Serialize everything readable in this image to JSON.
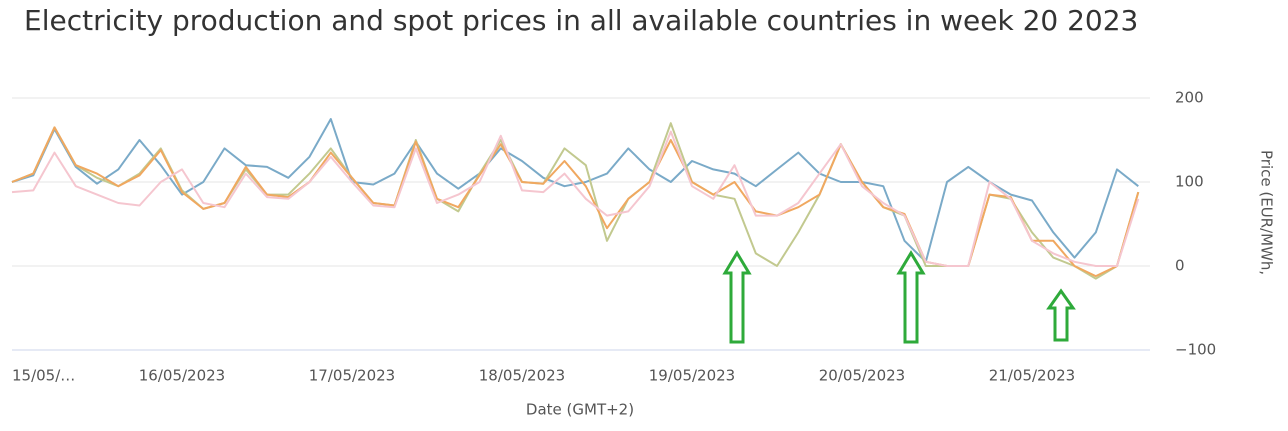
{
  "chart_data": {
    "type": "line",
    "title": "Electricity production and spot prices in all available countries in week 20 2023",
    "x_label": "Date (GMT+2)",
    "y_label": "Price (EUR/MWh,",
    "x": [
      0,
      3,
      6,
      9,
      12,
      15,
      18,
      21,
      24,
      27,
      30,
      33,
      36,
      39,
      42,
      45,
      48,
      51,
      54,
      57,
      60,
      63,
      66,
      69,
      72,
      75,
      78,
      81,
      84,
      87,
      90,
      93,
      96,
      99,
      102,
      105,
      108,
      111,
      114,
      117,
      120,
      123,
      126,
      129,
      132,
      135,
      138,
      141,
      144,
      147,
      150,
      153,
      156,
      159
    ],
    "xlim": [
      0,
      168
    ],
    "xticks": [
      {
        "value": 0,
        "label": "15/05/…"
      },
      {
        "value": 24,
        "label": "16/05/2023"
      },
      {
        "value": 48,
        "label": "17/05/2023"
      },
      {
        "value": 72,
        "label": "18/05/2023"
      },
      {
        "value": 96,
        "label": "19/05/2023"
      },
      {
        "value": 120,
        "label": "20/05/2023"
      },
      {
        "value": 144,
        "label": "21/05/2023"
      }
    ],
    "ylim": [
      -100,
      200
    ],
    "yticks": [
      200,
      100,
      0,
      {
        "value": -100,
        "label": "−100"
      }
    ],
    "grid": true,
    "series": [
      {
        "color": "#7aaac8",
        "values": [
          100,
          108,
          163,
          118,
          98,
          115,
          150,
          120,
          85,
          100,
          140,
          120,
          118,
          105,
          130,
          175,
          100,
          97,
          110,
          148,
          110,
          92,
          110,
          140,
          125,
          105,
          95,
          100,
          110,
          140,
          115,
          100,
          125,
          115,
          110,
          95,
          115,
          135,
          110,
          100,
          100,
          95,
          30,
          5,
          100,
          118,
          100,
          85,
          78,
          40,
          10,
          40,
          115,
          95
        ]
      },
      {
        "color": "#c2c98f",
        "values": [
          100,
          110,
          165,
          120,
          105,
          95,
          110,
          140,
          90,
          68,
          75,
          115,
          85,
          85,
          110,
          140,
          105,
          75,
          72,
          150,
          80,
          65,
          110,
          150,
          100,
          98,
          140,
          120,
          30,
          80,
          100,
          170,
          100,
          85,
          80,
          15,
          0,
          40,
          85,
          145,
          100,
          70,
          60,
          0,
          0,
          0,
          85,
          80,
          40,
          10,
          0,
          -15,
          0,
          88
        ]
      },
      {
        "color": "#f0a860",
        "values": [
          100,
          110,
          165,
          120,
          110,
          95,
          108,
          138,
          88,
          68,
          75,
          118,
          85,
          82,
          100,
          135,
          105,
          75,
          72,
          148,
          80,
          70,
          108,
          145,
          100,
          98,
          125,
          95,
          45,
          80,
          100,
          150,
          100,
          85,
          100,
          65,
          60,
          70,
          85,
          145,
          100,
          70,
          62,
          5,
          0,
          0,
          85,
          82,
          30,
          30,
          0,
          -12,
          0,
          88
        ]
      },
      {
        "color": "#f5c6cf",
        "values": [
          88,
          90,
          135,
          95,
          85,
          75,
          72,
          100,
          115,
          75,
          70,
          110,
          82,
          80,
          100,
          130,
          100,
          72,
          70,
          140,
          75,
          85,
          100,
          155,
          90,
          88,
          110,
          80,
          60,
          65,
          95,
          160,
          95,
          80,
          120,
          60,
          60,
          75,
          110,
          145,
          95,
          75,
          60,
          5,
          0,
          0,
          100,
          80,
          30,
          15,
          5,
          0,
          0,
          80
        ]
      }
    ]
  }
}
